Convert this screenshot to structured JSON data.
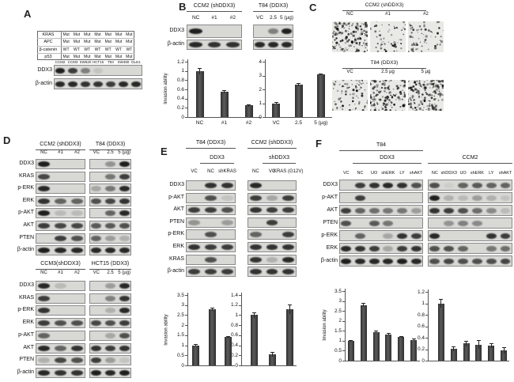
{
  "colors": {
    "bar": "#3e3e3e",
    "band": "#161616",
    "blot_bg": "#d8d8d5",
    "axis": "#555555"
  },
  "panels": {
    "A": {
      "label": "A",
      "table": {
        "row_headers": [
          "KRAS",
          "APC",
          "β-catenin",
          "p53"
        ],
        "values": [
          [
            "Mut",
            "Mut",
            "Mut",
            "Mut",
            "Mut",
            "Mut",
            "Mut"
          ],
          [
            "Mut",
            "Mut",
            "Mut",
            "Mut",
            "Mut",
            "Mut",
            "Mut"
          ],
          [
            "WT",
            "WT",
            "WT",
            "WT",
            "WT",
            "WT",
            "WT"
          ],
          [
            "Mut",
            "Mut",
            "Mut",
            "Mut",
            "Mut",
            "Mut",
            "Mut"
          ]
        ]
      },
      "cell_lines": [
        "CCM2",
        "CCM3",
        "SW620",
        "HCT15",
        "T84",
        "SW480",
        "DLD1"
      ],
      "rows": [
        {
          "label": "DDX3",
          "bands": [
            [
              0.95,
              0.8,
              0.45,
              0.1,
              0,
              0,
              0
            ]
          ]
        },
        {
          "label": "β-actin",
          "bands": [
            [
              0.9,
              0.9,
              0.85,
              0.85,
              0.8,
              0.9,
              0.9
            ]
          ]
        }
      ]
    },
    "B": {
      "label": "B",
      "groups": [
        {
          "title": "CCM2 (shDDX3)",
          "lanes": [
            "NC",
            "#1",
            "#2"
          ]
        },
        {
          "title": "T84 (DDX3)",
          "lanes": [
            "VC",
            "2.5",
            "5 (µg)"
          ]
        }
      ],
      "rows": [
        {
          "label": "DDX3",
          "bands": [
            [
              0.95,
              0,
              0
            ],
            [
              0,
              0.45,
              0.95
            ]
          ]
        },
        {
          "label": "β-actin",
          "bands": [
            [
              0.9,
              0.85,
              0.85
            ],
            [
              0.9,
              0.9,
              0.9
            ]
          ]
        }
      ],
      "charts": [
        0,
        1
      ]
    },
    "C": {
      "label": "C",
      "sections": [
        {
          "title": "CCM2 (shDDX3)",
          "images": [
            {
              "label": "NC",
              "density": 0.5
            },
            {
              "label": "#1",
              "density": 0.18
            },
            {
              "label": "#2",
              "density": 0.22
            }
          ]
        },
        {
          "title": "T84 (DDX3)",
          "images": [
            {
              "label": "VC",
              "density": 0.26
            },
            {
              "label": "2.5 µg",
              "density": 0.5
            },
            {
              "label": "5 µg",
              "density": 0.62
            }
          ]
        }
      ]
    },
    "D": {
      "label": "D",
      "blocks": [
        {
          "groups": [
            {
              "title": "CCM2 (shDDX3)",
              "lanes": [
                "NC",
                "#1",
                "#2"
              ]
            },
            {
              "title": "T84 (DDX3)",
              "lanes": [
                "VC",
                "2.5",
                "5 (µg)"
              ]
            }
          ],
          "rows": [
            {
              "label": "DDX3",
              "bands": [
                [
                  0.95,
                  0,
                  0
                ],
                [
                  0,
                  0.35,
                  0.95
                ]
              ]
            },
            {
              "label": "KRAS",
              "bands": [
                [
                  0.75,
                  0,
                  0
                ],
                [
                  0,
                  0.5,
                  0.8
                ]
              ]
            },
            {
              "label": "p-ERK",
              "bands": [
                [
                  0.9,
                  0,
                  0
                ],
                [
                  0.25,
                  0.5,
                  0.9
                ]
              ]
            },
            {
              "label": "ERK",
              "bands": [
                [
                  0.85,
                  0.6,
                  0.6
                ],
                [
                  0.7,
                  0.75,
                  0.85
                ]
              ]
            },
            {
              "label": "p-AKT",
              "bands": [
                [
                  0.95,
                  0.15,
                  0.15
                ],
                [
                  0,
                  0.6,
                  0.9
                ]
              ]
            },
            {
              "label": "AKT",
              "bands": [
                [
                  0.8,
                  0.75,
                  0.75
                ],
                [
                  0.65,
                  0.65,
                  0.7
                ]
              ]
            },
            {
              "label": "PTEN",
              "bands": [
                [
                  0,
                  0.8,
                  0.7
                ],
                [
                  0.6,
                  0.3,
                  0.2
                ]
              ]
            },
            {
              "label": "β-actin",
              "bands": [
                [
                  0.95,
                  0.9,
                  0.9
                ],
                [
                  0.9,
                  0.9,
                  0.9
                ]
              ]
            }
          ]
        },
        {
          "groups": [
            {
              "title": "CCM3(shDDX3)",
              "lanes": [
                "NC",
                "#1",
                "#2"
              ]
            },
            {
              "title": "HCT15 (DDX3)",
              "lanes": [
                "VC",
                "2.5",
                "5 (µg)"
              ]
            }
          ],
          "rows": [
            {
              "label": "DDX3",
              "bands": [
                [
                  0.9,
                  0.15,
                  0
                ],
                [
                  0,
                  0.3,
                  0.9
                ]
              ]
            },
            {
              "label": "KRAS",
              "bands": [
                [
                  0.8,
                  0,
                  0
                ],
                [
                  0,
                  0.45,
                  0.85
                ]
              ]
            },
            {
              "label": "p-ERK",
              "bands": [
                [
                  0.85,
                  0,
                  0
                ],
                [
                  0,
                  0.2,
                  0.9
                ]
              ]
            },
            {
              "label": "ERK",
              "bands": [
                [
                  0.8,
                  0.7,
                  0.7
                ],
                [
                  0.75,
                  0.7,
                  0.8
                ]
              ]
            },
            {
              "label": "p-AKT",
              "bands": [
                [
                  0.6,
                  0,
                  0
                ],
                [
                  0,
                  0.25,
                  0.7
                ]
              ]
            },
            {
              "label": "AKT",
              "bands": [
                [
                  0.9,
                  0.6,
                  0.85
                ],
                [
                  0.85,
                  0.8,
                  0.85
                ]
              ]
            },
            {
              "label": "PTEN",
              "bands": [
                [
                  0.2,
                  0.75,
                  0.7
                ],
                [
                  0.8,
                  0.3,
                  0.1
                ]
              ]
            },
            {
              "label": "β-actin",
              "bands": [
                [
                  0.9,
                  0.85,
                  0.85
                ],
                [
                  0.95,
                  0.9,
                  0.95
                ]
              ]
            }
          ]
        }
      ]
    },
    "E": {
      "label": "E",
      "groups": [
        {
          "title": "T84 (DDX3)",
          "subtitle": "DDX3",
          "lanes": [
            "VC",
            "NC",
            "shKRAS"
          ]
        },
        {
          "title": "CCM2 (shDDX3)",
          "subtitle": "shDDX3",
          "lanes": [
            "NC",
            "VC",
            "KRAS (G12V)"
          ]
        }
      ],
      "rows": [
        {
          "label": "DDX3",
          "bands": [
            [
              0,
              0.85,
              0.85
            ],
            [
              0.9,
              0,
              0
            ]
          ]
        },
        {
          "label": "p-AKT",
          "bands": [
            [
              0,
              0.7,
              0.1
            ],
            [
              0.8,
              0.25,
              0.8
            ]
          ]
        },
        {
          "label": "AKT",
          "bands": [
            [
              0.8,
              0.8,
              0.7
            ],
            [
              0.85,
              0.8,
              0.8
            ]
          ]
        },
        {
          "label": "PTEN",
          "bands": [
            [
              0.35,
              0,
              0.3
            ],
            [
              0,
              0.8,
              0
            ]
          ]
        },
        {
          "label": "p-ERK",
          "bands": [
            [
              0,
              0.7,
              0
            ],
            [
              0.6,
              0,
              0.8
            ]
          ]
        },
        {
          "label": "ERK",
          "bands": [
            [
              0.85,
              0.8,
              0.8
            ],
            [
              0.85,
              0.85,
              0.85
            ]
          ]
        },
        {
          "label": "KRAS",
          "bands": [
            [
              0,
              0.7,
              0
            ],
            [
              0.85,
              0.2,
              0.9
            ]
          ]
        },
        {
          "label": "β-actin",
          "bands": [
            [
              0.8,
              0.8,
              0.8
            ],
            [
              0.85,
              0.85,
              0.85
            ]
          ]
        }
      ],
      "charts": [
        2,
        3
      ]
    },
    "F": {
      "label": "F",
      "groups": [
        {
          "title": "T84",
          "subtitle": "DDX3",
          "lanes": [
            "VC",
            "NC",
            "UO",
            "shERK",
            "LY",
            "shAKT"
          ]
        },
        {
          "title": "CCM2",
          "lanes": [
            "NC",
            "shDDX3",
            "UO",
            "shERK",
            "LY",
            "shAKT"
          ]
        }
      ],
      "rows": [
        {
          "label": "DDX3",
          "bands": [
            [
              0,
              0.8,
              0.85,
              0.9,
              0.85,
              0.7
            ],
            [
              0.7,
              0.05,
              0.6,
              0.65,
              0.6,
              0.6
            ]
          ]
        },
        {
          "label": "p-AKT",
          "bands": [
            [
              0,
              0.8,
              0,
              0,
              0,
              0
            ],
            [
              0.95,
              0.2,
              0.15,
              0.3,
              0.2,
              0.1
            ]
          ]
        },
        {
          "label": "AKT",
          "bands": [
            [
              0.8,
              0.6,
              0.55,
              0.5,
              0.5,
              0.3
            ],
            [
              0.85,
              0.8,
              0.7,
              0.55,
              0.4,
              0.15
            ]
          ]
        },
        {
          "label": "PTEN",
          "bands": [
            [
              0.7,
              0,
              0.65,
              0.5,
              0,
              0
            ],
            [
              0,
              0.35,
              0.45,
              0.4,
              0,
              0
            ]
          ]
        },
        {
          "label": "p-ERK",
          "bands": [
            [
              0,
              0.6,
              0,
              0.25,
              0.85,
              0.8
            ],
            [
              0.9,
              0,
              0,
              0,
              0.85,
              0.8
            ]
          ]
        },
        {
          "label": "ERK",
          "bands": [
            [
              0.9,
              0.85,
              0.8,
              0.25,
              0.8,
              0.85
            ],
            [
              0.7,
              0.7,
              0.6,
              0,
              0.5,
              0.55
            ]
          ]
        },
        {
          "label": "β-actin",
          "bands": [
            [
              0.95,
              0.9,
              0.9,
              0.9,
              0.95,
              0.9
            ],
            [
              0.7,
              0.75,
              0.7,
              0.7,
              0.7,
              0.75
            ]
          ]
        }
      ],
      "charts": [
        4,
        5
      ]
    }
  },
  "chart_data": [
    {
      "id": "B-left",
      "type": "bar",
      "ylabel": "Invasion ability",
      "categories": [
        "NC",
        "#1",
        "#2"
      ],
      "values": [
        1.0,
        0.55,
        0.25
      ],
      "errors": [
        0.07,
        0.03,
        0.03
      ],
      "ylim": [
        0,
        1.2
      ],
      "ystep": 0.2,
      "show_xlabels": true
    },
    {
      "id": "B-right",
      "type": "bar",
      "ylabel": "",
      "categories": [
        "VC",
        "2.5",
        "5 (µg)"
      ],
      "values": [
        1.0,
        2.35,
        3.1
      ],
      "errors": [
        0.08,
        0.1,
        0.07
      ],
      "ylim": [
        0,
        4
      ],
      "ystep": 1,
      "show_xlabels": true
    },
    {
      "id": "E-left",
      "type": "bar",
      "ylabel": "Invasion ability",
      "categories": [
        "VC",
        "NC",
        "shKRAS"
      ],
      "values": [
        1.0,
        2.8,
        1.4
      ],
      "errors": [
        0.06,
        0.08,
        0.07
      ],
      "ylim": [
        0,
        3.5
      ],
      "ystep": 0.5,
      "show_xlabels": false
    },
    {
      "id": "E-right",
      "type": "bar",
      "ylabel": "",
      "categories": [
        "NC",
        "VC",
        "KRAS (G12V)"
      ],
      "values": [
        1.0,
        0.22,
        1.12
      ],
      "errors": [
        0.05,
        0.05,
        0.09
      ],
      "ylim": [
        0,
        1.4
      ],
      "ystep": 0.2,
      "show_xlabels": false
    },
    {
      "id": "F-left",
      "type": "bar",
      "ylabel": "Invasion ability",
      "categories": [
        "VC",
        "NC",
        "UO",
        "shERK",
        "LY",
        "shAKT"
      ],
      "values": [
        1.0,
        2.8,
        1.45,
        1.33,
        1.2,
        1.05
      ],
      "errors": [
        0.05,
        0.1,
        0.07,
        0.06,
        0.05,
        0.05
      ],
      "ylim": [
        0,
        3.5
      ],
      "ystep": 0.5,
      "show_xlabels": false
    },
    {
      "id": "F-right",
      "type": "bar",
      "ylabel": "",
      "categories": [
        "NC",
        "shDDX3",
        "UO",
        "shERK",
        "LY",
        "shAKT"
      ],
      "values": [
        1.0,
        0.21,
        0.3,
        0.28,
        0.26,
        0.18
      ],
      "errors": [
        0.08,
        0.04,
        0.05,
        0.08,
        0.04,
        0.05
      ],
      "ylim": [
        0,
        1.2
      ],
      "ystep": 0.2,
      "show_xlabels": false
    }
  ]
}
